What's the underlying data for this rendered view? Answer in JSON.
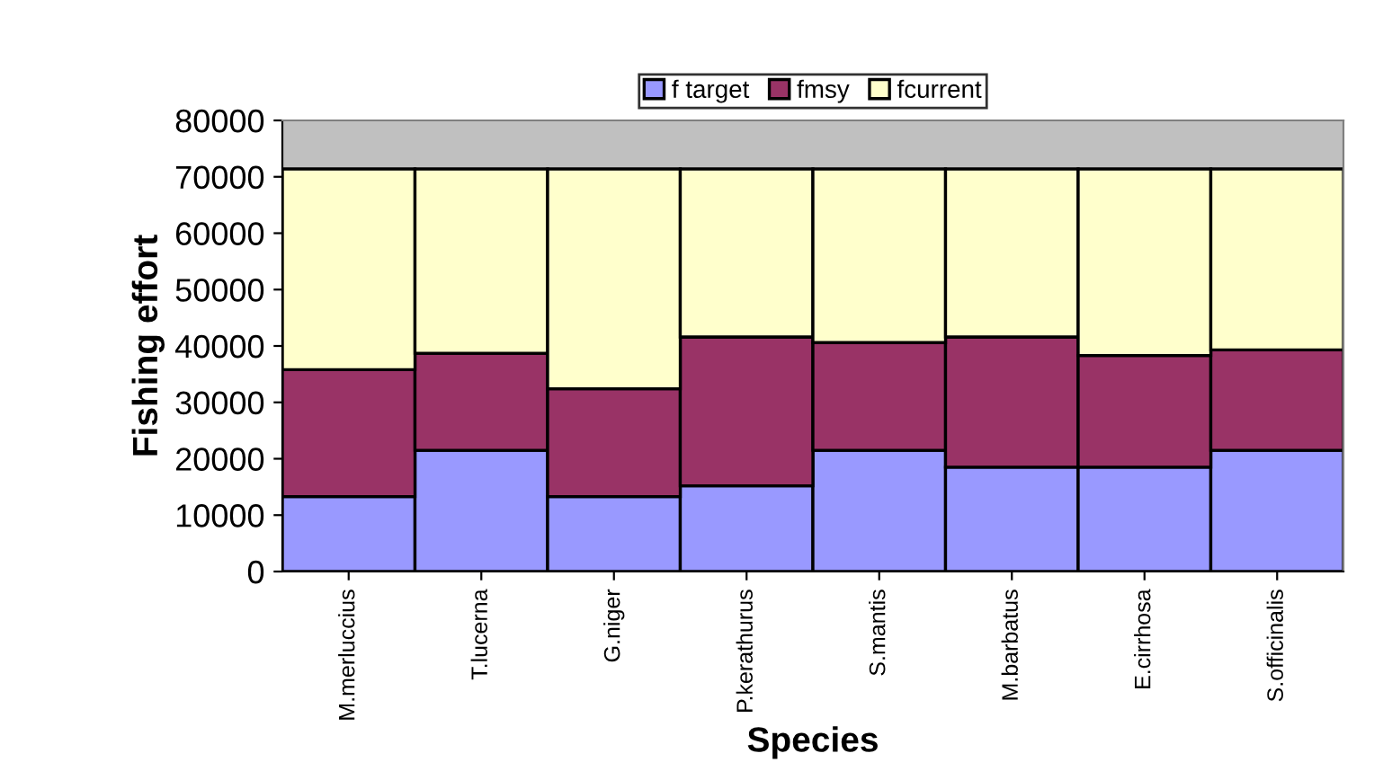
{
  "chart_data": {
    "type": "bar",
    "stacked": true,
    "xlabel": "Species",
    "ylabel": "Fishing effort",
    "categories": [
      "M.merluccius",
      "T.lucerna",
      "G.niger",
      "P.kerathurus",
      "S.mantis",
      "M.barbatus",
      "E.cirrhosa",
      "S.officinalis"
    ],
    "series": [
      {
        "name": "f target",
        "color": "#9999ff",
        "values": [
          13300,
          21500,
          13300,
          15200,
          21500,
          18500,
          18500,
          21500
        ]
      },
      {
        "name": "fmsy",
        "color": "#993366",
        "values": [
          22500,
          17200,
          19100,
          26400,
          19100,
          23100,
          19800,
          17800
        ]
      },
      {
        "name": "fcurrent",
        "color": "#ffffcc",
        "values": [
          35600,
          32700,
          39000,
          29800,
          30800,
          29800,
          33100,
          32100
        ]
      }
    ],
    "ylim": [
      0,
      80000
    ],
    "yticks": [
      0,
      10000,
      20000,
      30000,
      40000,
      50000,
      60000,
      70000,
      80000
    ],
    "grid": false,
    "legend": "top"
  }
}
